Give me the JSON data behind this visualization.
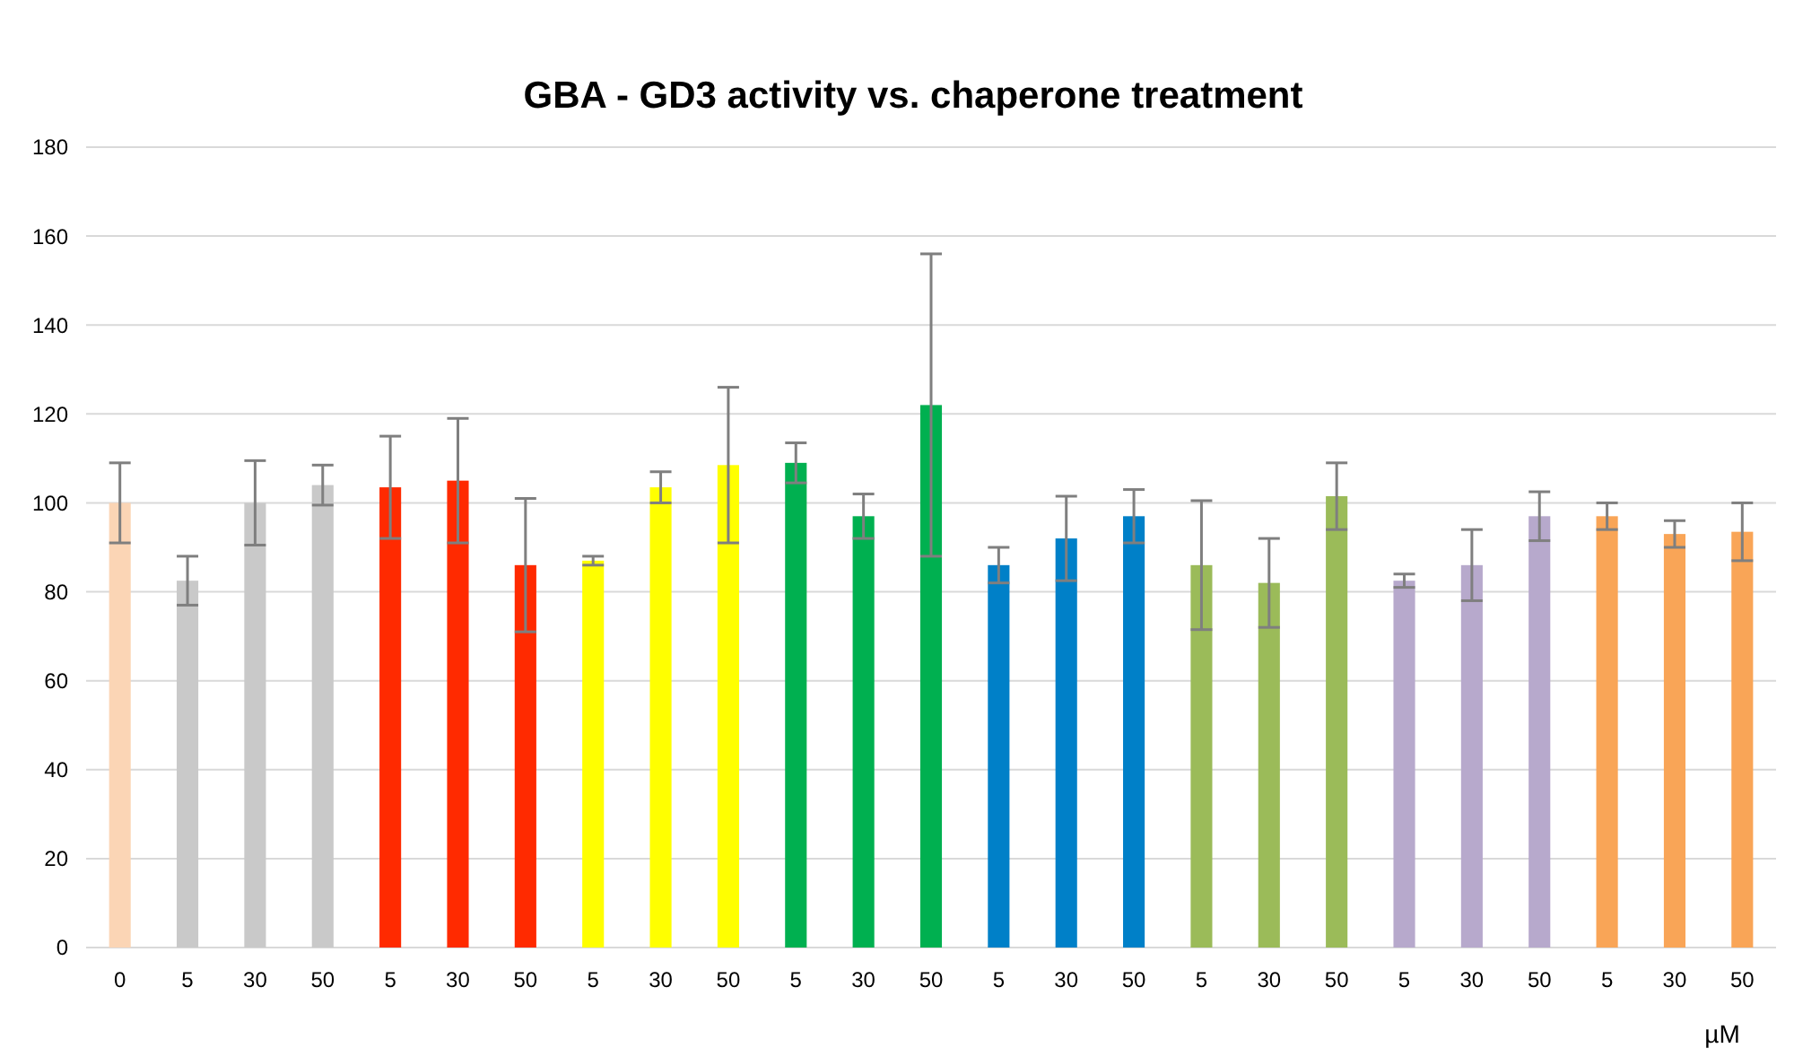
{
  "chart_data": {
    "type": "bar",
    "title": "GBA - GD3 activity vs. chaperone treatment",
    "xlabel": "µM",
    "categories": [
      "0",
      "5",
      "30",
      "50",
      "5",
      "30",
      "50",
      "5",
      "30",
      "50",
      "5",
      "30",
      "50",
      "5",
      "30",
      "50",
      "5",
      "30",
      "50",
      "5",
      "30",
      "50",
      "5",
      "30",
      "50"
    ],
    "values": [
      100,
      82.5,
      100,
      104,
      103.5,
      105,
      86,
      87,
      103.5,
      108.5,
      109,
      97,
      122,
      86,
      92,
      97,
      86,
      82,
      101.5,
      82.5,
      86,
      97,
      97,
      93,
      93.5
    ],
    "errors": [
      9,
      5.5,
      9.5,
      4.5,
      11.5,
      14,
      15,
      1,
      3.5,
      17.5,
      4.5,
      5,
      34,
      4,
      9.5,
      6,
      14.5,
      10,
      7.5,
      1.5,
      8,
      5.5,
      3,
      3,
      6.5
    ],
    "colors": [
      "#fbd5b5",
      "#c9c9c9",
      "#c9c9c9",
      "#c9c9c9",
      "#ff2a00",
      "#ff2a00",
      "#ff2a00",
      "#ffff00",
      "#ffff00",
      "#ffff00",
      "#00b050",
      "#00b050",
      "#00b050",
      "#0080c8",
      "#0080c8",
      "#0080c8",
      "#9bbb59",
      "#9bbb59",
      "#9bbb59",
      "#b7a9cc",
      "#b7a9cc",
      "#b7a9cc",
      "#f9a557",
      "#f9a557",
      "#f9a557"
    ],
    "ylim": [
      0,
      180
    ],
    "yticks": [
      0,
      20,
      40,
      60,
      80,
      100,
      120,
      140,
      160,
      180
    ],
    "grid": "y"
  }
}
